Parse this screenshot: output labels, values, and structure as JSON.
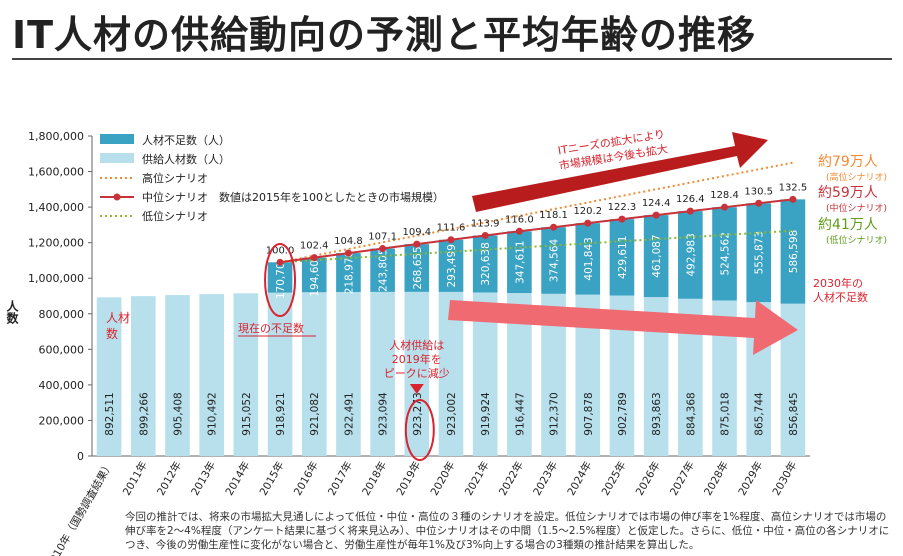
{
  "title": "IT人材の供給動向の予測と平均年齢の推移",
  "footnote": "今回の推計では、将来の市場拡大見通しによって低位・中位・高位の３種のシナリオを設定。低位シナリオでは市場の伸び率を1%程度、高位シナリオでは市場の伸び率を2～4%程度（アンケート結果に基づく将来見込み）、中位シナリオはその中間（1.5～2.5%程度）と仮定した。さらに、低位・中位・高位の各シナリオにつき、今後の労働生産性に変化がない場合と、労働生産性が毎年1%及び3%向上する場合の3種類の推計結果を算出した。",
  "colors": {
    "shortage": "#3aa2c2",
    "supply": "#b7e0ec",
    "high": "#f08a33",
    "mid": "#c8323a",
    "low": "#8ab832",
    "arrow_up": "#b81c1c",
    "arrow_down": "#f06a72",
    "accent_red": "#d9232e",
    "accent_green": "#5f9c1a"
  },
  "annotations": {
    "current_shortage": "現在の不足数",
    "supply_worker_label": "人材数",
    "supply_peak": [
      "人材供給は",
      "2019年を",
      "ピークに減少"
    ],
    "market_growth": [
      "ITニーズの拡大により",
      "市場規模は今後も拡大"
    ],
    "high_label": "約79万人",
    "high_sub": "(高位シナリオ)",
    "mid_label": "約59万人",
    "mid_sub": "(中位シナリオ)",
    "low_label": "約41万人",
    "low_sub": "(低位シナリオ)",
    "shortage_2030": [
      "2030年の",
      "人材不足数"
    ]
  },
  "chart_data": {
    "type": "bar",
    "stacked": true,
    "ylabel": "人数",
    "ylim": [
      0,
      1800000
    ],
    "yticks": [
      "0",
      "200,000",
      "400,000",
      "600,000",
      "800,000",
      "1,000,000",
      "1,200,000",
      "1,400,000",
      "1,600,000",
      "1,800,000"
    ],
    "ytick_values": [
      0,
      200000,
      400000,
      600000,
      800000,
      1000000,
      1200000,
      1400000,
      1600000,
      1800000
    ],
    "categories": [
      "2010年（国勢調査結果）",
      "2011年",
      "2012年",
      "2013年",
      "2014年",
      "2015年",
      "2016年",
      "2017年",
      "2018年",
      "2019年",
      "2020年",
      "2021年",
      "2022年",
      "2023年",
      "2024年",
      "2025年",
      "2026年",
      "2027年",
      "2028年",
      "2029年",
      "2030年"
    ],
    "legend": {
      "placement": "top-left",
      "items": [
        "人材不足数（人）",
        "供給人材数（人）",
        "高位シナリオ",
        "中位シナリオ　数値は2015年を100としたときの市場規模）",
        "低位シナリオ"
      ]
    },
    "series": [
      {
        "name": "供給人材数（人）",
        "values": [
          892511,
          899266,
          905408,
          910492,
          915052,
          918921,
          921082,
          922491,
          923094,
          923273,
          923002,
          919924,
          916447,
          912370,
          907878,
          902789,
          893863,
          884368,
          875018,
          865744,
          856845
        ],
        "labels": [
          "892,511",
          "899,266",
          "905,408",
          "910,492",
          "915,052",
          "918,921",
          "921,082",
          "922,491",
          "923,094",
          "923,273",
          "923,002",
          "919,924",
          "916,447",
          "912,370",
          "907,878",
          "902,789",
          "893,863",
          "884,368",
          "875,018",
          "865,744",
          "856,845"
        ]
      },
      {
        "name": "人材不足数（人）",
        "values": [
          null,
          null,
          null,
          null,
          null,
          170700,
          194608,
          218976,
          243805,
          268655,
          293499,
          320638,
          347611,
          374564,
          401843,
          429611,
          461087,
          492983,
          524562,
          555873,
          586598
        ],
        "labels": [
          "",
          "",
          "",
          "",
          "",
          "170,700",
          "194,608",
          "218,976",
          "243,805",
          "268,655",
          "293,499",
          "320,638",
          "347,611",
          "374,564",
          "401,843",
          "429,611",
          "461,087",
          "492,983",
          "524,562",
          "555,873",
          "586,598"
        ]
      }
    ],
    "market_index": {
      "name": "中位シナリオ",
      "values": [
        null,
        null,
        null,
        null,
        null,
        100.0,
        102.4,
        104.8,
        107.1,
        109.4,
        111.6,
        113.9,
        116.0,
        118.1,
        120.2,
        122.3,
        124.4,
        126.4,
        128.4,
        130.5,
        132.5
      ],
      "labels": [
        "",
        "",
        "",
        "",
        "",
        "100.0",
        "102.4",
        "104.8",
        "107.1",
        "109.4",
        "111.6",
        "113.9",
        "116.0",
        "118.1",
        "120.2",
        "122.3",
        "124.4",
        "126.4",
        "128.4",
        "130.5",
        "132.5"
      ]
    },
    "scenarios": {
      "high": [
        null,
        null,
        null,
        null,
        null,
        1089621,
        null,
        null,
        null,
        null,
        null,
        null,
        null,
        null,
        null,
        null,
        null,
        null,
        null,
        null,
        1650000
      ],
      "mid": [
        null,
        null,
        null,
        null,
        null,
        1089621,
        1115690,
        1141467,
        1166899,
        1191928,
        1216501,
        1240562,
        1264058,
        1286934,
        1309721,
        1332400,
        1354950,
        1377351,
        1399580,
        1421617,
        1443443
      ],
      "low": [
        null,
        null,
        null,
        null,
        null,
        1089621,
        null,
        null,
        null,
        null,
        null,
        null,
        null,
        null,
        null,
        null,
        null,
        null,
        null,
        null,
        1267000
      ]
    }
  }
}
